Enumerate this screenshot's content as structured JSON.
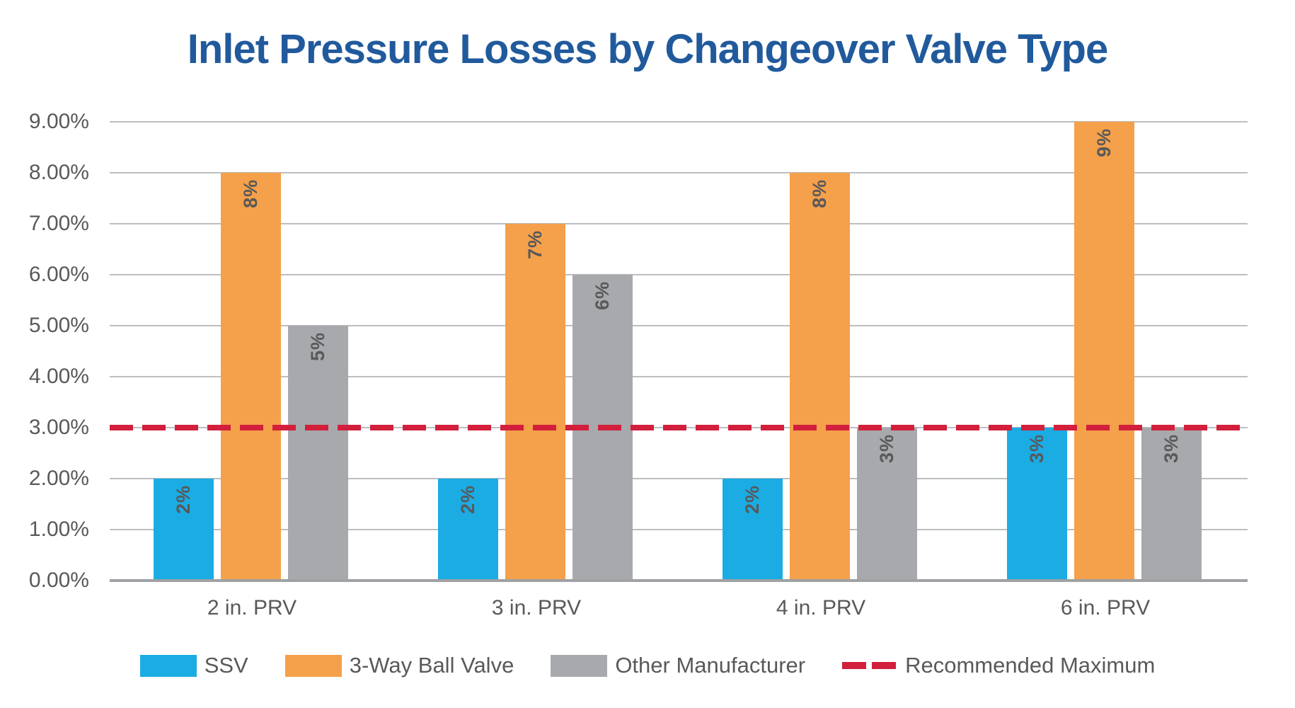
{
  "title": "Inlet Pressure Losses by Changeover Valve Type",
  "chart_data": {
    "type": "bar",
    "title": "Inlet Pressure Losses by Changeover Valve Type",
    "categories": [
      "2 in. PRV",
      "3 in. PRV",
      "4 in. PRV",
      "6 in. PRV"
    ],
    "series": [
      {
        "name": "SSV",
        "color": "#1BACE4",
        "values": [
          2,
          2,
          2,
          3
        ],
        "point_labels": [
          "2%",
          "2%",
          "2%",
          "3%"
        ]
      },
      {
        "name": "3-Way Ball Valve",
        "color": "#F5A04A",
        "values": [
          8,
          7,
          8,
          9
        ],
        "point_labels": [
          "8%",
          "7%",
          "8%",
          "9%"
        ]
      },
      {
        "name": "Other Manufacturer",
        "color": "#A8A9AC",
        "values": [
          5,
          6,
          3,
          3
        ],
        "point_labels": [
          "5%",
          "6%",
          "3%",
          "3%"
        ]
      }
    ],
    "reference_line": {
      "name": "Recommended Maximum",
      "value": 3,
      "color": "#D21F3C",
      "style": "dashed"
    },
    "y_axis": {
      "min": 0,
      "max": 9,
      "tick_step": 1,
      "tick_labels": [
        "0.00%",
        "1.00%",
        "2.00%",
        "3.00%",
        "4.00%",
        "5.00%",
        "6.00%",
        "7.00%",
        "8.00%",
        "9.00%"
      ]
    },
    "xlabel": "",
    "ylabel": "",
    "grid": "horizontal",
    "legend_position": "bottom"
  },
  "colors": {
    "title_text": "#215A9C",
    "axis_text": "#58595B",
    "gridline": "#BCBEC0",
    "axis_line": "#9FA1A4",
    "background": "#FFFFFF"
  }
}
